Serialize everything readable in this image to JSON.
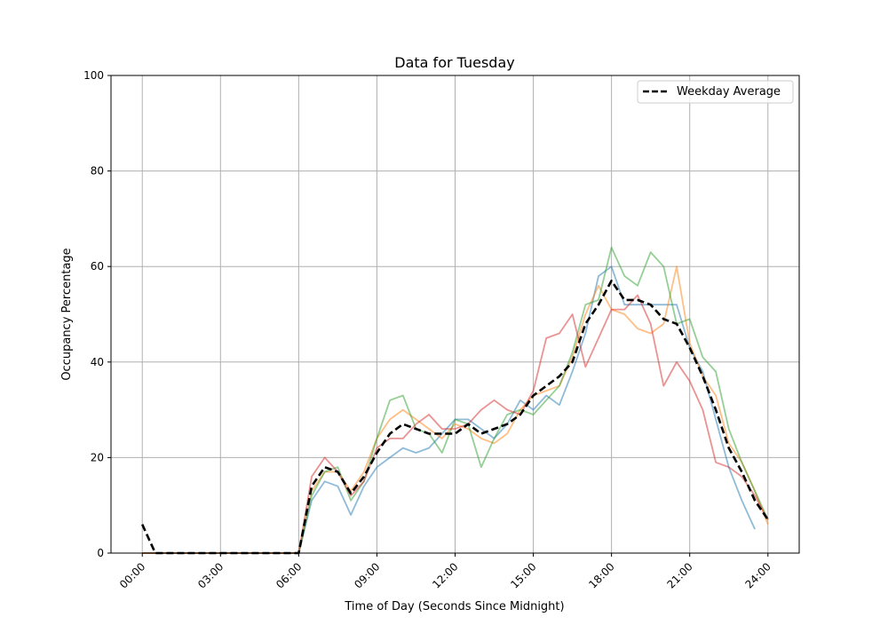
{
  "chart_data": {
    "type": "line",
    "title": "Data for Tuesday",
    "xlabel": "Time of Day (Seconds Since Midnight)",
    "ylabel": "Occupancy Percentage",
    "ylim": [
      0,
      100
    ],
    "xlim": [
      "-01:12",
      "25:12"
    ],
    "grid": true,
    "legend": {
      "placement": "upper-right",
      "entries": [
        "Weekday Average"
      ]
    },
    "x_ticks": [
      "00:00",
      "03:00",
      "06:00",
      "09:00",
      "12:00",
      "15:00",
      "18:00",
      "21:00",
      "24:00"
    ],
    "y_ticks": [
      0,
      20,
      40,
      60,
      80,
      100
    ],
    "x": [
      "00:00",
      "00:30",
      "01:00",
      "01:30",
      "02:00",
      "02:30",
      "03:00",
      "03:30",
      "04:00",
      "04:30",
      "05:00",
      "05:30",
      "06:00",
      "06:30",
      "07:00",
      "07:30",
      "08:00",
      "08:30",
      "09:00",
      "09:30",
      "10:00",
      "10:30",
      "11:00",
      "11:30",
      "12:00",
      "12:30",
      "13:00",
      "13:30",
      "14:00",
      "14:30",
      "15:00",
      "15:30",
      "16:00",
      "16:30",
      "17:00",
      "17:30",
      "18:00",
      "18:30",
      "19:00",
      "19:30",
      "20:00",
      "20:30",
      "21:00",
      "21:30",
      "22:00",
      "22:30",
      "23:00",
      "23:30",
      "24:00"
    ],
    "series": [
      {
        "color": "#1f77b4",
        "style": "solid",
        "alpha": 0.5,
        "values": [
          0,
          0,
          0,
          0,
          0,
          0,
          0,
          0,
          0,
          0,
          0,
          0,
          0,
          11,
          15,
          14,
          8,
          14,
          18,
          20,
          22,
          21,
          22,
          25,
          28,
          28,
          26,
          24,
          27,
          32,
          30,
          33,
          31,
          38,
          46,
          58,
          60,
          52,
          52,
          52,
          52,
          52,
          43,
          38,
          28,
          18,
          11,
          5,
          null
        ]
      },
      {
        "color": "#ff7f0e",
        "style": "solid",
        "alpha": 0.5,
        "values": [
          0,
          0,
          0,
          0,
          0,
          0,
          0,
          0,
          0,
          0,
          0,
          0,
          0,
          13,
          17,
          17,
          13,
          17,
          24,
          28,
          30,
          28,
          26,
          24,
          27,
          26,
          24,
          23,
          25,
          30,
          33,
          34,
          35,
          41,
          50,
          56,
          51,
          50,
          47,
          46,
          48,
          60,
          44,
          37,
          33,
          23,
          19,
          13,
          6
        ]
      },
      {
        "color": "#2ca02c",
        "style": "solid",
        "alpha": 0.5,
        "values": [
          0,
          0,
          0,
          0,
          0,
          0,
          0,
          0,
          0,
          0,
          0,
          0,
          0,
          12,
          17,
          18,
          11,
          15,
          24,
          32,
          33,
          26,
          25,
          21,
          28,
          27,
          18,
          24,
          29,
          30,
          29,
          32,
          35,
          42,
          52,
          53,
          64,
          58,
          56,
          63,
          60,
          48,
          49,
          41,
          38,
          26,
          19,
          13,
          7
        ]
      },
      {
        "color": "#d62728",
        "style": "solid",
        "alpha": 0.5,
        "values": [
          0,
          0,
          0,
          0,
          0,
          0,
          0,
          0,
          0,
          0,
          0,
          0,
          0,
          16,
          20,
          17,
          12,
          15,
          22,
          24,
          24,
          27,
          29,
          26,
          26,
          27,
          30,
          32,
          30,
          29,
          34,
          45,
          46,
          50,
          39,
          45,
          51,
          51,
          54,
          48,
          35,
          40,
          36,
          30,
          19,
          18,
          16,
          12,
          7
        ]
      },
      {
        "name": "Weekday Average",
        "color": "#000000",
        "style": "dashed",
        "alpha": 1,
        "values": [
          6,
          0,
          0,
          0,
          0,
          0,
          0,
          0,
          0,
          0,
          0,
          0,
          0,
          14,
          18,
          17,
          12.5,
          16,
          21,
          25,
          27,
          26,
          25,
          25,
          25,
          27,
          25,
          26,
          27,
          29,
          33,
          35,
          37,
          40,
          48,
          52,
          57,
          53,
          53,
          52,
          49,
          48,
          43,
          37,
          30,
          22,
          17,
          11,
          7
        ]
      }
    ]
  }
}
